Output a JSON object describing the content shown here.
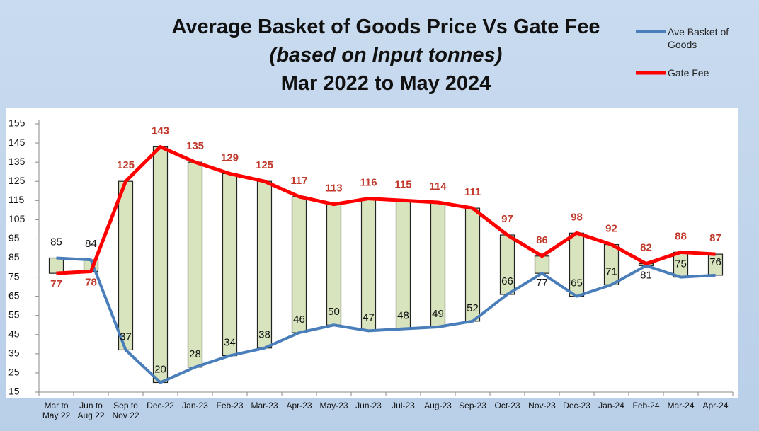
{
  "chart_data": {
    "type": "floating-bar-line",
    "title": "Average Basket of Goods Price Vs Gate Fee",
    "subtitle": "(based on Input tonnes)",
    "period": "Mar 2022 to May 2024",
    "categories": [
      "Mar to May 22",
      "Jun to Aug 22",
      "Sep to Nov 22",
      "Dec-22",
      "Jan-23",
      "Feb-23",
      "Mar-23",
      "Apr-23",
      "May-23",
      "Jun-23",
      "Jul-23",
      "Aug-23",
      "Sep-23",
      "Oct-23",
      "Nov-23",
      "Dec-23",
      "Jan-24",
      "Feb-24",
      "Mar-24",
      "Apr-24"
    ],
    "series": [
      {
        "name": "Ave Basket of Goods",
        "color": "#4a7ebb",
        "label_color": "#111111",
        "values": [
          85,
          84,
          37,
          20,
          28,
          34,
          38,
          46,
          50,
          47,
          48,
          49,
          52,
          66,
          77,
          65,
          71,
          81,
          75,
          76
        ]
      },
      {
        "name": "Gate Fee",
        "color": "#ff0000",
        "label_color": "#c0392b",
        "values": [
          77,
          78,
          125,
          143,
          135,
          129,
          125,
          117,
          113,
          116,
          115,
          114,
          111,
          97,
          86,
          98,
          92,
          82,
          88,
          87
        ]
      }
    ],
    "bar_color": "#d7e4bd",
    "ylim": [
      15,
      155
    ],
    "yticks": [
      15,
      25,
      35,
      45,
      55,
      65,
      75,
      85,
      95,
      105,
      115,
      125,
      135,
      145,
      155
    ],
    "legend": "top-right"
  }
}
